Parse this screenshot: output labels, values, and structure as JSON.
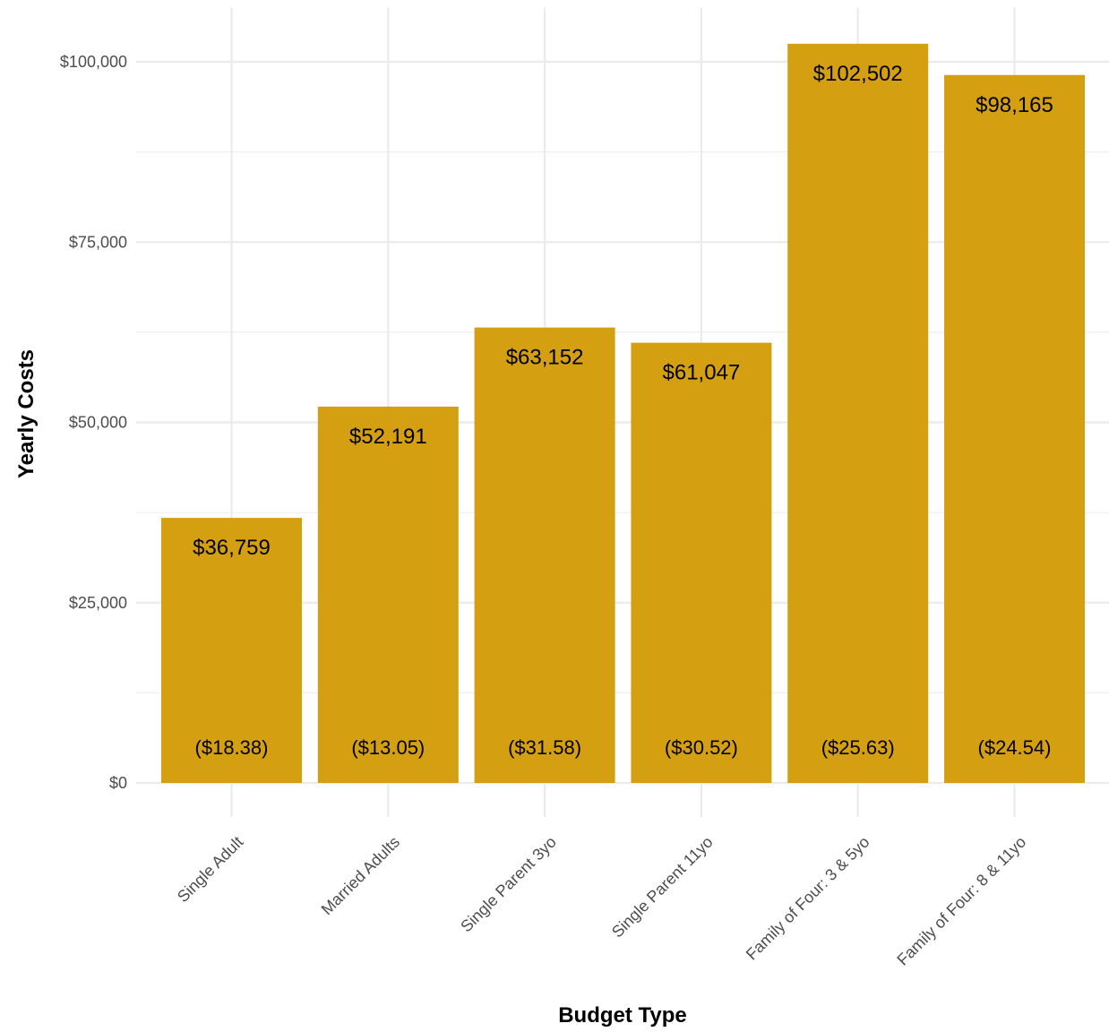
{
  "chart_data": {
    "type": "bar",
    "xlabel": "Budget Type",
    "ylabel": "Yearly Costs",
    "categories": [
      "Single Adult",
      "Married Adults",
      "Single Parent 3yo",
      "Single Parent 11yo",
      "Family of Four: 3 & 5yo",
      "Family of Four: 8 & 11yo"
    ],
    "values": [
      36759,
      52191,
      63152,
      61047,
      102502,
      98165
    ],
    "value_labels": [
      "$36,759",
      "$52,191",
      "$63,152",
      "$61,047",
      "$102,502",
      "$98,165"
    ],
    "sub_labels": [
      "($18.38)",
      "($13.05)",
      "($31.58)",
      "($30.52)",
      "($25.63)",
      "($24.54)"
    ],
    "ylim": [
      0,
      107500
    ],
    "y_ticks": [
      0,
      25000,
      50000,
      75000,
      100000
    ],
    "y_tick_labels": [
      "$0",
      "$25,000",
      "$50,000",
      "$75,000",
      "$100,000"
    ],
    "bar_color": "#D4A011",
    "grid_color": "#EBEBEB",
    "grid": true,
    "legend": "none"
  }
}
